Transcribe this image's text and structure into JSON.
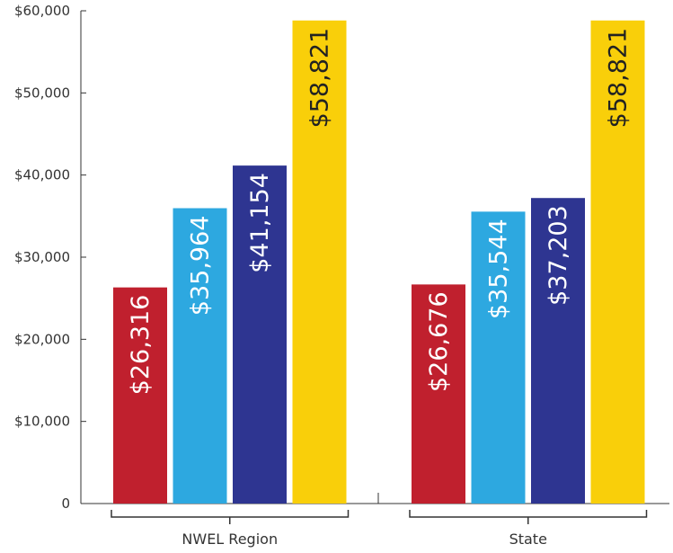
{
  "chart_data": {
    "type": "bar",
    "categories": [
      "NWEL Region",
      "State"
    ],
    "series": [
      {
        "values": [
          26316,
          26676
        ],
        "labels": [
          "$26,316",
          "$26,676"
        ],
        "color": "#C0202E",
        "label_color": "#ffffff"
      },
      {
        "values": [
          35964,
          35544
        ],
        "labels": [
          "$35,964",
          "$35,544"
        ],
        "color": "#2DA8E0",
        "label_color": "#ffffff"
      },
      {
        "values": [
          41154,
          37203
        ],
        "labels": [
          "$41,154",
          "$37,203"
        ],
        "color": "#2E3591",
        "label_color": "#ffffff"
      },
      {
        "values": [
          58821,
          58821
        ],
        "labels": [
          "$58,821",
          "$58,821"
        ],
        "color": "#F9CF0A",
        "label_color": "#222222"
      }
    ],
    "y_ticks": [
      0,
      10000,
      20000,
      30000,
      40000,
      50000,
      60000
    ],
    "y_tick_labels": [
      "0",
      "$10,000",
      "$20,000",
      "$30,000",
      "$40,000",
      "$50,000",
      "$60,000"
    ],
    "ylim": [
      0,
      60000
    ],
    "title": "",
    "xlabel": "",
    "ylabel": "",
    "grid": false,
    "legend": "none"
  }
}
